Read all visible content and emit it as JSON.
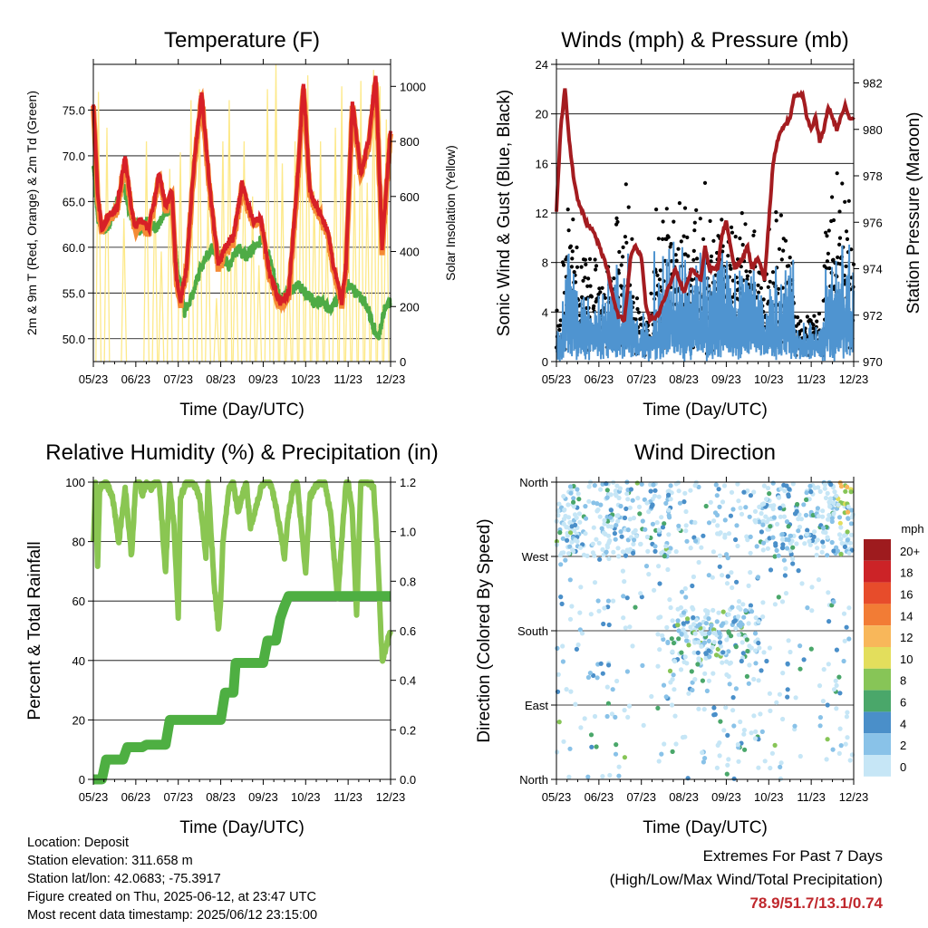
{
  "x_tick_labels": [
    "05/23",
    "06/23",
    "07/23",
    "08/23",
    "09/23",
    "10/23",
    "11/23",
    "12/23"
  ],
  "x_axis_label": "Time (Day/UTC)",
  "colors": {
    "temp": "#d72027",
    "temp9m": "#f58b35",
    "dewpoint": "#4eab45",
    "solar": "#fde98a",
    "wind": "#4f94d0",
    "gust": "#000000",
    "pressure": "#a41c20",
    "rh": "#8ac652",
    "precip": "#4eaf42",
    "extreme_text": "#c0282d"
  },
  "chart_data": [
    {
      "type": "line",
      "id": "temperature",
      "title": "Temperature (F)",
      "ylabel": "2m & 9m T (Red, Orange) & 2m Td (Green)",
      "y2label": "Solar Insolation (Yellow)",
      "ylim": [
        47.5,
        80.0
      ],
      "y_ticks": [
        "50.0",
        "55.0",
        "60.0",
        "65.0",
        "70.0",
        "75.0"
      ],
      "y2lim": [
        0,
        1080
      ],
      "y2_ticks": [
        "0",
        "200",
        "400",
        "600",
        "800",
        "1000"
      ],
      "xlim": [
        0,
        7
      ],
      "series": [
        {
          "name": "2m T",
          "x": [
            0,
            0.1,
            0.2,
            0.35,
            0.55,
            0.75,
            0.9,
            1.0,
            1.1,
            1.3,
            1.55,
            1.7,
            1.85,
            1.95,
            2.05,
            2.2,
            2.35,
            2.55,
            2.75,
            2.95,
            3.1,
            3.3,
            3.5,
            3.75,
            3.95,
            4.15,
            4.4,
            4.6,
            4.8,
            4.95,
            5.1,
            5.3,
            5.5,
            5.7,
            5.85,
            5.95,
            6.1,
            6.3,
            6.5,
            6.65,
            6.8,
            7.0
          ],
          "y": [
            76,
            66,
            62,
            63.5,
            64,
            70,
            64,
            62,
            63,
            62,
            68,
            64.5,
            66,
            57,
            54,
            58,
            68,
            77,
            66,
            58,
            60,
            61,
            67,
            63,
            63,
            57,
            54,
            55,
            67,
            78,
            66,
            64,
            62,
            57,
            54,
            58,
            76,
            68,
            72,
            79,
            60,
            73
          ]
        },
        {
          "name": "2m Td",
          "x": [
            0,
            0.1,
            0.3,
            0.5,
            0.7,
            0.9,
            1.1,
            1.3,
            1.5,
            1.7,
            1.85,
            2.0,
            2.15,
            2.35,
            2.55,
            2.8,
            3.0,
            3.2,
            3.4,
            3.6,
            3.8,
            4.0,
            4.2,
            4.4,
            4.6,
            4.8,
            5.0,
            5.2,
            5.4,
            5.6,
            5.8,
            6.0,
            6.2,
            6.4,
            6.55,
            6.7,
            6.85,
            7.0
          ],
          "y": [
            69,
            63,
            62,
            64,
            67,
            63,
            62,
            63,
            62,
            64,
            64,
            57,
            53,
            55,
            58,
            60,
            59,
            58,
            60,
            59,
            60,
            61,
            58,
            54,
            55,
            56,
            55,
            54,
            54,
            53,
            55,
            56,
            55,
            54,
            52,
            50,
            53,
            54
          ]
        },
        {
          "name": "Solar Insolation (W/m2)",
          "axis": "y2",
          "peaks": [
            [
              0.12,
              980
            ],
            [
              0.32,
              850
            ],
            [
              0.72,
              520
            ],
            [
              1.25,
              800
            ],
            [
              1.45,
              650
            ],
            [
              1.6,
              400
            ],
            [
              1.8,
              700
            ],
            [
              2.05,
              760
            ],
            [
              2.3,
              950
            ],
            [
              2.5,
              990
            ],
            [
              2.7,
              600
            ],
            [
              2.9,
              230
            ],
            [
              3.05,
              800
            ],
            [
              3.2,
              950
            ],
            [
              3.35,
              500
            ],
            [
              3.55,
              800
            ],
            [
              3.75,
              600
            ],
            [
              3.9,
              350
            ],
            [
              4.1,
              990
            ],
            [
              4.3,
              1080
            ],
            [
              4.45,
              720
            ],
            [
              4.6,
              350
            ],
            [
              4.75,
              800
            ],
            [
              4.9,
              1000
            ],
            [
              5.05,
              1040
            ],
            [
              5.2,
              620
            ],
            [
              5.35,
              800
            ],
            [
              5.5,
              500
            ],
            [
              5.7,
              850
            ],
            [
              5.85,
              1000
            ],
            [
              6.0,
              550
            ],
            [
              6.15,
              680
            ],
            [
              6.3,
              1020
            ],
            [
              6.45,
              650
            ],
            [
              6.6,
              1060
            ],
            [
              6.75,
              1000
            ],
            [
              6.9,
              880
            ]
          ]
        }
      ]
    },
    {
      "type": "line",
      "id": "winds",
      "title": "Winds (mph) & Pressure (mb)",
      "ylabel": "Sonic Wind & Gust (Blue, Black)",
      "y2label": "Station Pressure (Maroon)",
      "ylim": [
        0,
        24
      ],
      "y_ticks": [
        "0",
        "4",
        "8",
        "12",
        "16",
        "20",
        "24"
      ],
      "y2lim": [
        970,
        982.8
      ],
      "y2_ticks": [
        "970",
        "972",
        "974",
        "976",
        "978",
        "980",
        "982"
      ],
      "xlim": [
        0,
        7
      ],
      "series": [
        {
          "name": "Station Pressure",
          "axis": "y2",
          "x": [
            0,
            0.1,
            0.2,
            0.3,
            0.4,
            0.5,
            0.7,
            0.9,
            1.0,
            1.1,
            1.2,
            1.3,
            1.45,
            1.6,
            1.75,
            1.85,
            2.0,
            2.1,
            2.2,
            2.4,
            2.6,
            2.8,
            3.0,
            3.2,
            3.4,
            3.5,
            3.6,
            3.8,
            3.9,
            4.0,
            4.1,
            4.2,
            4.4,
            4.5,
            4.6,
            4.75,
            4.9,
            5.0,
            5.1,
            5.2,
            5.3,
            5.5,
            5.6,
            5.8,
            5.9,
            6.0,
            6.1,
            6.2,
            6.3,
            6.4,
            6.5,
            6.6,
            6.7,
            6.8,
            6.9,
            7.0
          ],
          "y": [
            976.5,
            980,
            981.8,
            979.5,
            978,
            977,
            976,
            975.5,
            975,
            974.5,
            974,
            973,
            972,
            971.8,
            974.5,
            975,
            974.5,
            972.5,
            971.8,
            972,
            973,
            974,
            973,
            974,
            973.5,
            975,
            974,
            974,
            975.5,
            976,
            975,
            974,
            974.5,
            975,
            974,
            974.5,
            973.5,
            976,
            978.5,
            979.5,
            980,
            980.5,
            981.5,
            981.5,
            980.5,
            980,
            980.5,
            979.5,
            980,
            981,
            980.5,
            980,
            980.5,
            981,
            980.5,
            980.5
          ]
        },
        {
          "name": "Sonic Wind",
          "kind": "noisy",
          "range": [
            0.5,
            7
          ]
        },
        {
          "name": "Gust",
          "kind": "scatter",
          "range": [
            1,
            20
          ]
        }
      ]
    },
    {
      "type": "line",
      "id": "humidity",
      "title": "Relative Humidity (%) & Precipitation (in)",
      "ylabel": "Percent & Total Rainfall",
      "ylim": [
        0,
        100
      ],
      "y_ticks": [
        "0",
        "20",
        "40",
        "60",
        "80",
        "100"
      ],
      "y2lim": [
        0,
        1.2
      ],
      "y2_ticks": [
        "0.0",
        "0.2",
        "0.4",
        "0.6",
        "0.8",
        "1.0",
        "1.2"
      ],
      "xlim": [
        0,
        7
      ],
      "series": [
        {
          "name": "Relative Humidity",
          "x": [
            0,
            0.05,
            0.1,
            0.15,
            0.3,
            0.45,
            0.6,
            0.75,
            0.9,
            1.0,
            1.1,
            1.15,
            1.25,
            1.35,
            1.45,
            1.55,
            1.7,
            1.8,
            1.9,
            2.0,
            2.05,
            2.2,
            2.35,
            2.5,
            2.65,
            2.7,
            2.85,
            2.95,
            3.0,
            3.05,
            3.2,
            3.3,
            3.4,
            3.5,
            3.6,
            3.7,
            3.8,
            3.95,
            4.05,
            4.15,
            4.25,
            4.35,
            4.5,
            4.6,
            4.7,
            4.8,
            4.85,
            5.0,
            5.1,
            5.3,
            5.45,
            5.6,
            5.75,
            5.85,
            5.95,
            6.0,
            6.1,
            6.2,
            6.3,
            6.5,
            6.6,
            6.7,
            6.8,
            6.9,
            7.0
          ],
          "y": [
            80,
            100,
            72,
            98,
            100,
            95,
            80,
            98,
            75,
            100,
            100,
            95,
            100,
            98,
            100,
            100,
            70,
            100,
            85,
            55,
            95,
            100,
            100,
            95,
            75,
            100,
            65,
            50,
            60,
            80,
            98,
            100,
            90,
            95,
            100,
            85,
            90,
            98,
            100,
            100,
            95,
            88,
            75,
            90,
            98,
            100,
            92,
            70,
            95,
            100,
            100,
            88,
            60,
            80,
            100,
            100,
            90,
            55,
            100,
            100,
            98,
            75,
            40,
            45,
            50
          ]
        },
        {
          "name": "Total Rainfall",
          "axis": "y2",
          "x": [
            0,
            0.2,
            0.3,
            0.7,
            0.8,
            1.15,
            1.25,
            1.7,
            1.8,
            3.0,
            3.1,
            3.3,
            3.35,
            4.0,
            4.1,
            4.3,
            4.4,
            4.5,
            4.6,
            7.0
          ],
          "y": [
            0,
            0,
            0.08,
            0.08,
            0.13,
            0.13,
            0.14,
            0.14,
            0.24,
            0.24,
            0.35,
            0.35,
            0.47,
            0.47,
            0.56,
            0.56,
            0.65,
            0.7,
            0.74,
            0.74
          ]
        }
      ]
    },
    {
      "type": "scatter",
      "id": "direction",
      "title": "Wind Direction",
      "ylabel": "Direction (Colored By Speed)",
      "y_ticks": [
        "North",
        "East",
        "South",
        "West",
        "North"
      ],
      "ylim": [
        0,
        360
      ],
      "xlim": [
        0,
        7
      ],
      "colorbar": {
        "unit": "mph",
        "labels": [
          "0",
          "2",
          "4",
          "6",
          "8",
          "10",
          "12",
          "14",
          "16",
          "18",
          "20+"
        ],
        "colors": [
          "#c6e6f6",
          "#89c2e8",
          "#4a8fc9",
          "#4aa76a",
          "#87c557",
          "#e3de5c",
          "#f8b75a",
          "#f27c35",
          "#e74c2b",
          "#cc2327",
          "#9e1b1e"
        ]
      }
    }
  ],
  "station_info": {
    "location": "Location: Deposit",
    "elevation": "Station elevation: 311.658 m",
    "latlon": "Station lat/lon: 42.0683; -75.3917",
    "created": "Figure created on Thu, 2025-06-12, at 23:47 UTC",
    "recent": "Most recent data timestamp: 2025/06/12 23:15:00"
  },
  "extremes": {
    "line1": "Extremes For Past 7 Days",
    "line2": "(High/Low/Max Wind/Total Precipitation)",
    "values": "78.9/51.7/13.1/0.74"
  }
}
